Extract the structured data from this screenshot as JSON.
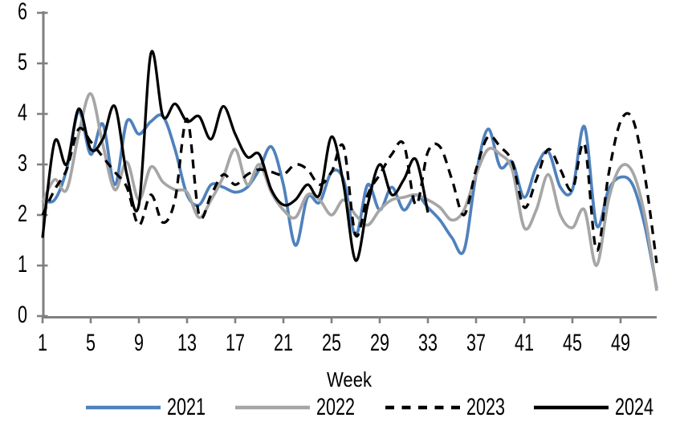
{
  "chart_data": {
    "type": "line",
    "title": "",
    "xlabel": "Week",
    "ylabel": "",
    "xlim": [
      1,
      52
    ],
    "ylim": [
      0,
      6
    ],
    "grid": false,
    "smooth": true,
    "legend_position": "bottom",
    "axis_color": "#808080",
    "text_color": "#000000",
    "background_color": "#FFFFFF",
    "y_ticks": [
      0,
      1,
      2,
      3,
      4,
      5,
      6
    ],
    "x_ticks": [
      1,
      5,
      9,
      13,
      17,
      21,
      25,
      29,
      33,
      37,
      41,
      45,
      49
    ],
    "x_unit": "week",
    "series": [
      {
        "name": "2021",
        "color": "#4F81BD",
        "dash": false,
        "start_week": 1,
        "values": [
          2.3,
          2.3,
          2.9,
          4.05,
          3.2,
          3.8,
          2.6,
          3.85,
          3.6,
          3.85,
          3.95,
          3.3,
          2.4,
          2.2,
          2.6,
          2.55,
          2.45,
          2.55,
          2.9,
          3.35,
          2.6,
          1.4,
          2.35,
          2.25,
          2.85,
          2.7,
          1.6,
          2.6,
          2.1,
          2.55,
          2.1,
          2.4,
          2.15,
          1.9,
          1.55,
          1.3,
          2.8,
          3.7,
          2.95,
          3.05,
          2.35,
          2.95,
          3.25,
          2.55,
          2.5,
          3.75,
          1.8,
          2.5,
          2.75,
          2.6,
          1.8,
          0.55
        ]
      },
      {
        "name": "2022",
        "color": "#A6A6A6",
        "dash": false,
        "start_week": 1,
        "values": [
          2.25,
          2.7,
          2.5,
          3.6,
          4.4,
          3.4,
          2.5,
          3.05,
          2.3,
          2.95,
          2.65,
          2.5,
          2.45,
          1.95,
          2.3,
          2.75,
          3.3,
          2.6,
          3.0,
          2.45,
          2.1,
          1.95,
          2.4,
          2.3,
          2.0,
          2.3,
          2.0,
          1.8,
          2.1,
          2.3,
          2.35,
          2.4,
          2.3,
          2.15,
          1.9,
          2.1,
          2.8,
          3.3,
          3.2,
          2.9,
          1.75,
          2.1,
          2.8,
          2.0,
          1.75,
          2.1,
          1.0,
          2.3,
          2.95,
          2.85,
          2.0,
          0.5
        ]
      },
      {
        "name": "2023",
        "color": "#000000",
        "dash": true,
        "start_week": 1,
        "values": [
          2.0,
          2.5,
          2.9,
          3.7,
          3.45,
          3.15,
          2.85,
          2.55,
          1.8,
          2.4,
          1.85,
          2.3,
          3.9,
          2.0,
          2.4,
          2.8,
          2.6,
          2.8,
          2.9,
          2.85,
          2.8,
          3.0,
          2.9,
          2.6,
          2.85,
          3.35,
          1.6,
          2.4,
          2.8,
          3.2,
          3.4,
          2.2,
          3.25,
          3.35,
          2.7,
          2.0,
          2.9,
          3.55,
          3.35,
          3.05,
          2.15,
          2.7,
          3.3,
          2.9,
          2.5,
          3.4,
          1.3,
          2.8,
          3.85,
          3.9,
          2.8,
          1.05
        ]
      },
      {
        "name": "2024",
        "color": "#000000",
        "dash": false,
        "start_week": 1,
        "values": [
          1.55,
          3.45,
          3.0,
          4.1,
          3.3,
          3.5,
          4.15,
          2.8,
          2.2,
          5.2,
          3.95,
          4.2,
          3.85,
          3.95,
          3.5,
          4.15,
          3.6,
          3.15,
          3.2,
          2.5,
          2.2,
          2.3,
          2.6,
          2.4,
          3.55,
          2.6,
          1.1,
          2.2,
          3.0,
          2.4,
          2.7,
          3.1,
          2.05
        ]
      }
    ],
    "legend": [
      "2021",
      "2022",
      "2023",
      "2024"
    ]
  }
}
